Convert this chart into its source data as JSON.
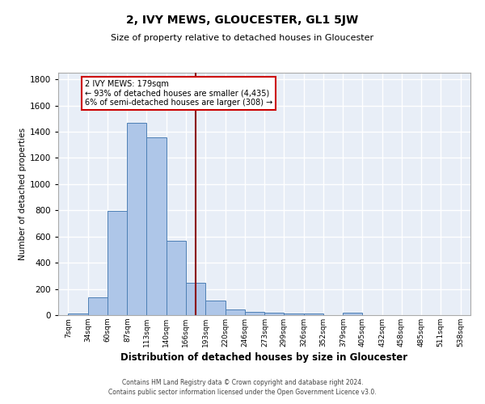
{
  "title": "2, IVY MEWS, GLOUCESTER, GL1 5JW",
  "subtitle": "Size of property relative to detached houses in Gloucester",
  "xlabel": "Distribution of detached houses by size in Gloucester",
  "ylabel": "Number of detached properties",
  "footnote1": "Contains HM Land Registry data © Crown copyright and database right 2024.",
  "footnote2": "Contains public sector information licensed under the Open Government Licence v3.0.",
  "bin_labels": [
    "7sqm",
    "34sqm",
    "60sqm",
    "87sqm",
    "113sqm",
    "140sqm",
    "166sqm",
    "193sqm",
    "220sqm",
    "246sqm",
    "273sqm",
    "299sqm",
    "326sqm",
    "352sqm",
    "379sqm",
    "405sqm",
    "432sqm",
    "458sqm",
    "485sqm",
    "511sqm",
    "538sqm"
  ],
  "bar_heights": [
    10,
    137,
    795,
    1468,
    1358,
    568,
    248,
    110,
    42,
    27,
    18,
    14,
    10,
    0,
    20,
    0,
    0,
    0,
    0,
    0
  ],
  "bar_color": "#aec6e8",
  "bar_edge_color": "#4d7fb5",
  "vline_x": 179,
  "vline_color": "#8b0000",
  "bin_edges_sqm": [
    7,
    34,
    60,
    87,
    113,
    140,
    166,
    193,
    220,
    246,
    273,
    299,
    326,
    352,
    379,
    405,
    432,
    458,
    485,
    511,
    538
  ],
  "annotation_line1": "2 IVY MEWS: 179sqm",
  "annotation_line2": "← 93% of detached houses are smaller (4,435)",
  "annotation_line3": "6% of semi-detached houses are larger (308) →",
  "annotation_box_color": "#ffffff",
  "annotation_box_edge": "#cc0000",
  "ylim": [
    0,
    1850
  ],
  "background_color": "#e8eef7",
  "grid_color": "#ffffff",
  "fig_bg": "#ffffff"
}
